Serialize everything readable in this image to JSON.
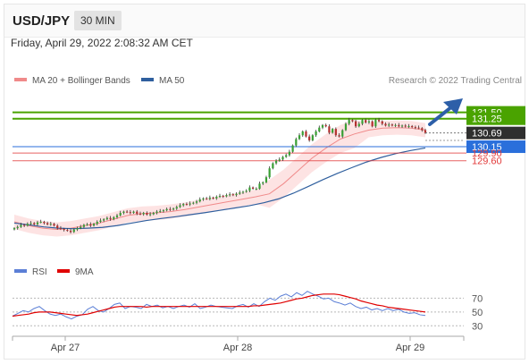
{
  "header": {
    "pair": "USD/JPY",
    "timeframe": "30 MIN",
    "datetime": "Friday, April 29, 2022 2:08:32 AM CET"
  },
  "legend": {
    "ma20": "MA 20 + Bollinger Bands",
    "ma50": "MA 50",
    "copyright": "Research © 2022 Trading Central"
  },
  "colors": {
    "ma20": "#f08a8a",
    "ma50": "#2f5f9e",
    "band_fill": "#fde3e3",
    "resistance": "#4aa300",
    "pivot": "#2a6fdb",
    "support": "#e23b3b",
    "last": "#2f2f2f",
    "rsi": "#5b7fd6",
    "rsi_ma": "#e00000",
    "candle_up": "#3aa035",
    "candle_down": "#b23030"
  },
  "chart_data": [
    {
      "type": "candlestick",
      "ylim": [
        125.9,
        132.4
      ],
      "x_ticks": [
        "Apr 27",
        "Apr 28",
        "Apr 29"
      ],
      "last_price": "130.69",
      "levels": [
        {
          "label": "131.50",
          "value": 131.5,
          "kind": "resistance"
        },
        {
          "label": "131.25",
          "value": 131.25,
          "kind": "resistance"
        },
        {
          "label": "130.15",
          "value": 130.15,
          "kind": "pivot"
        },
        {
          "label": "129.90",
          "value": 129.9,
          "kind": "support"
        },
        {
          "label": "129.60",
          "value": 129.6,
          "kind": "support"
        }
      ],
      "series": [
        {
          "name": "MA 20 + Bollinger Bands"
        },
        {
          "name": "MA 50"
        }
      ],
      "closes": [
        126.95,
        127.0,
        127.08,
        127.05,
        127.12,
        127.15,
        127.1,
        127.18,
        127.2,
        127.15,
        127.1,
        127.12,
        127.05,
        126.95,
        126.92,
        126.88,
        126.85,
        126.8,
        126.9,
        126.95,
        127.0,
        127.08,
        127.1,
        127.05,
        127.12,
        127.2,
        127.25,
        127.3,
        127.35,
        127.3,
        127.38,
        127.45,
        127.55,
        127.6,
        127.58,
        127.55,
        127.6,
        127.52,
        127.5,
        127.55,
        127.48,
        127.5,
        127.55,
        127.6,
        127.62,
        127.65,
        127.7,
        127.68,
        127.72,
        127.78,
        127.85,
        127.9,
        127.88,
        127.92,
        127.95,
        128.0,
        128.08,
        128.12,
        128.1,
        128.15,
        128.12,
        128.18,
        128.22,
        128.2,
        128.25,
        128.28,
        128.25,
        128.3,
        128.35,
        128.38,
        128.42,
        128.55,
        128.5,
        128.5,
        128.7,
        128.75,
        128.95,
        129.3,
        129.5,
        129.6,
        129.65,
        129.75,
        129.82,
        129.95,
        130.2,
        130.45,
        130.6,
        130.75,
        130.55,
        130.4,
        130.6,
        130.75,
        130.9,
        131.0,
        130.95,
        130.7,
        130.85,
        130.6,
        130.55,
        130.8,
        131.05,
        131.2,
        131.15,
        130.95,
        131.05,
        131.2,
        131.1,
        131.15,
        130.95,
        131.2,
        131.15,
        131.05,
        130.98,
        131.02,
        130.98,
        131.0,
        130.95,
        130.98,
        130.94,
        130.96,
        130.92,
        130.9,
        130.88,
        130.8,
        130.69
      ],
      "ma20": [
        127.2,
        127.05,
        126.95,
        126.9,
        126.95,
        127.05,
        127.15,
        127.3,
        127.45,
        127.52,
        127.55,
        127.6,
        127.68,
        127.78,
        127.88,
        127.98,
        128.08,
        128.18,
        128.3,
        128.7,
        129.2,
        129.7,
        130.1,
        130.45,
        130.65,
        130.8,
        130.88,
        130.9,
        130.88,
        130.8
      ],
      "ma50": [
        127.15,
        127.08,
        127.0,
        126.95,
        126.93,
        126.95,
        126.98,
        127.05,
        127.15,
        127.25,
        127.33,
        127.4,
        127.48,
        127.56,
        127.65,
        127.74,
        127.83,
        127.95,
        128.1,
        128.32,
        128.58,
        128.85,
        129.1,
        129.33,
        129.55,
        129.73,
        129.88,
        130.0,
        130.1
      ]
    },
    {
      "type": "line",
      "title": "RSI",
      "ylim": [
        20,
        90
      ],
      "y_ticks": [
        "70",
        "50",
        "30"
      ],
      "series": [
        {
          "name": "RSI",
          "values": [
            44,
            48,
            52,
            50,
            55,
            58,
            52,
            47,
            45,
            47,
            43,
            40,
            44,
            46,
            54,
            58,
            52,
            50,
            55,
            61,
            63,
            55,
            58,
            57,
            55,
            61,
            58,
            60,
            56,
            58,
            55,
            58,
            60,
            57,
            62,
            55,
            57,
            60,
            58,
            57,
            56,
            55,
            59,
            61,
            57,
            62,
            58,
            65,
            70,
            67,
            73,
            76,
            72,
            78,
            74,
            80,
            76,
            73,
            69,
            70,
            65,
            63,
            60,
            63,
            58,
            55,
            57,
            53,
            55,
            52,
            55,
            52,
            54,
            50,
            48,
            49,
            46,
            45
          ]
        },
        {
          "name": "9MA",
          "values": [
            44,
            45,
            46,
            47,
            49,
            50,
            50,
            50,
            49,
            48,
            47,
            46,
            45,
            46,
            47,
            49,
            51,
            53,
            55,
            57,
            58,
            58,
            58,
            58,
            58,
            57,
            58,
            58,
            58,
            58,
            58,
            58,
            58,
            58,
            58,
            58,
            58,
            58,
            58,
            58,
            58,
            58,
            58,
            58,
            58,
            59,
            59,
            60,
            61,
            62,
            63,
            65,
            67,
            69,
            70,
            72,
            74,
            75,
            76,
            76,
            76,
            75,
            73,
            71,
            69,
            66,
            64,
            62,
            60,
            59,
            57,
            56,
            55,
            54,
            53,
            52,
            51,
            50
          ]
        }
      ]
    }
  ]
}
